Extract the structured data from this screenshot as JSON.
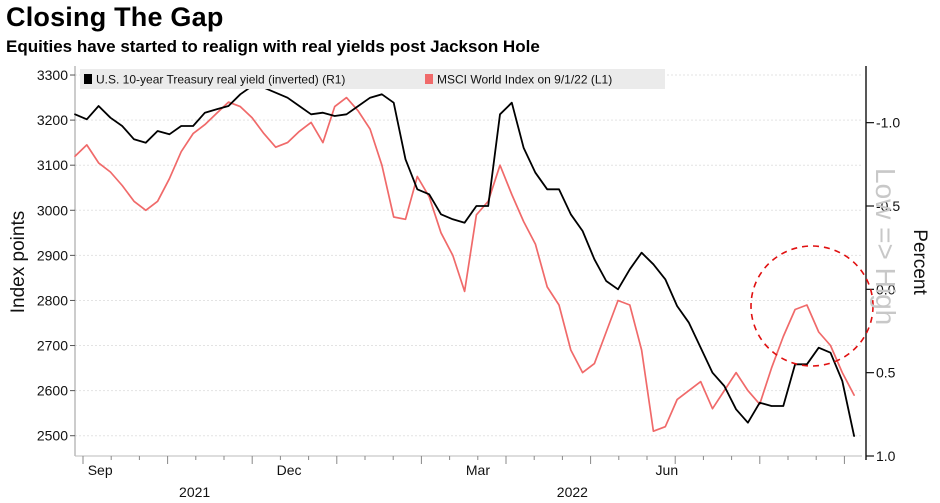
{
  "chart_data": {
    "type": "line",
    "title": "Closing The Gap",
    "subtitle": "Equities have started to realign with real yields post Jackson Hole",
    "ylabel_left": "Index points",
    "ylabel_right": "Percent",
    "left_axis": {
      "range": [
        2455,
        3320
      ],
      "ticks": [
        2500,
        2600,
        2700,
        2800,
        2900,
        3000,
        3100,
        3200,
        3300
      ]
    },
    "right_axis": {
      "range": [
        1.0,
        -1.34
      ],
      "inverted": true,
      "ticks": [
        1.0,
        0.5,
        0.0,
        -0.5,
        -1.0
      ],
      "tick_labels": [
        "1.0",
        "0.5",
        "0.0",
        "-0.5",
        "-1.0"
      ]
    },
    "x_month_labels": [
      "Sep",
      "Dec",
      "Mar",
      "Jun"
    ],
    "x_month_positions": [
      0.032,
      0.272,
      0.512,
      0.752
    ],
    "x_year_labels": [
      "2021",
      "2022"
    ],
    "x_year_positions": [
      0.152,
      0.632
    ],
    "legend": [
      {
        "label": "U.S. 10-year Treasury real yield (inverted) (R1)",
        "color": "#000000"
      },
      {
        "label": "MSCI World Index  on 9/1/22 (L1)",
        "color": "#f06a6a"
      }
    ],
    "annotation": "Low => High",
    "series": [
      {
        "name": "MSCI World Index  on 9/1/22 (L1)",
        "axis": "left",
        "color": "#f06a6a",
        "x": [
          0.0,
          0.015,
          0.03,
          0.045,
          0.06,
          0.075,
          0.09,
          0.105,
          0.12,
          0.135,
          0.15,
          0.165,
          0.18,
          0.195,
          0.21,
          0.225,
          0.24,
          0.255,
          0.27,
          0.285,
          0.3,
          0.315,
          0.33,
          0.345,
          0.36,
          0.375,
          0.39,
          0.405,
          0.42,
          0.435,
          0.45,
          0.465,
          0.48,
          0.495,
          0.51,
          0.525,
          0.54,
          0.555,
          0.57,
          0.585,
          0.6,
          0.615,
          0.63,
          0.645,
          0.66,
          0.675,
          0.69,
          0.705,
          0.72,
          0.735,
          0.75,
          0.765,
          0.78,
          0.795,
          0.81,
          0.825,
          0.84,
          0.855,
          0.87,
          0.885,
          0.9,
          0.915,
          0.93,
          0.945,
          0.96,
          0.975,
          0.99
        ],
        "values": [
          3120,
          3145,
          3105,
          3085,
          3055,
          3020,
          3000,
          3020,
          3070,
          3130,
          3170,
          3190,
          3215,
          3240,
          3230,
          3205,
          3170,
          3140,
          3150,
          3175,
          3195,
          3150,
          3230,
          3250,
          3220,
          3180,
          3100,
          2985,
          2980,
          3075,
          3030,
          2950,
          2900,
          2820,
          2990,
          3020,
          3100,
          3035,
          2975,
          2925,
          2830,
          2790,
          2690,
          2640,
          2660,
          2730,
          2800,
          2790,
          2690,
          2510,
          2520,
          2580,
          2600,
          2620,
          2560,
          2600,
          2640,
          2600,
          2570,
          2650,
          2720,
          2780,
          2790,
          2730,
          2700,
          2640,
          2590
        ]
      },
      {
        "name": "U.S. 10-year Treasury real yield (inverted) (R1)",
        "axis": "right",
        "color": "#000000",
        "x": [
          0.0,
          0.015,
          0.03,
          0.045,
          0.06,
          0.075,
          0.09,
          0.105,
          0.12,
          0.135,
          0.15,
          0.165,
          0.18,
          0.195,
          0.21,
          0.225,
          0.24,
          0.255,
          0.27,
          0.285,
          0.3,
          0.315,
          0.33,
          0.345,
          0.36,
          0.375,
          0.39,
          0.405,
          0.42,
          0.435,
          0.45,
          0.465,
          0.48,
          0.495,
          0.51,
          0.525,
          0.54,
          0.555,
          0.57,
          0.585,
          0.6,
          0.615,
          0.63,
          0.645,
          0.66,
          0.675,
          0.69,
          0.705,
          0.72,
          0.735,
          0.75,
          0.765,
          0.78,
          0.795,
          0.81,
          0.825,
          0.84,
          0.855,
          0.87,
          0.885,
          0.9,
          0.915,
          0.93,
          0.945,
          0.96,
          0.975,
          0.99
        ],
        "values": [
          -1.05,
          -1.02,
          -1.1,
          -1.03,
          -0.98,
          -0.9,
          -0.88,
          -0.95,
          -0.93,
          -0.98,
          -0.98,
          -1.06,
          -1.08,
          -1.1,
          -1.17,
          -1.22,
          -1.21,
          -1.18,
          -1.15,
          -1.1,
          -1.05,
          -1.06,
          -1.04,
          -1.05,
          -1.1,
          -1.15,
          -1.17,
          -1.12,
          -0.78,
          -0.6,
          -0.57,
          -0.45,
          -0.42,
          -0.4,
          -0.5,
          -0.5,
          -1.05,
          -1.12,
          -0.85,
          -0.7,
          -0.6,
          -0.6,
          -0.45,
          -0.35,
          -0.18,
          -0.05,
          0.0,
          -0.12,
          -0.22,
          -0.15,
          -0.06,
          0.1,
          0.2,
          0.35,
          0.5,
          0.58,
          0.72,
          0.8,
          0.68,
          0.7,
          0.7,
          0.45,
          0.45,
          0.35,
          0.38,
          0.55,
          0.88
        ]
      }
    ]
  }
}
